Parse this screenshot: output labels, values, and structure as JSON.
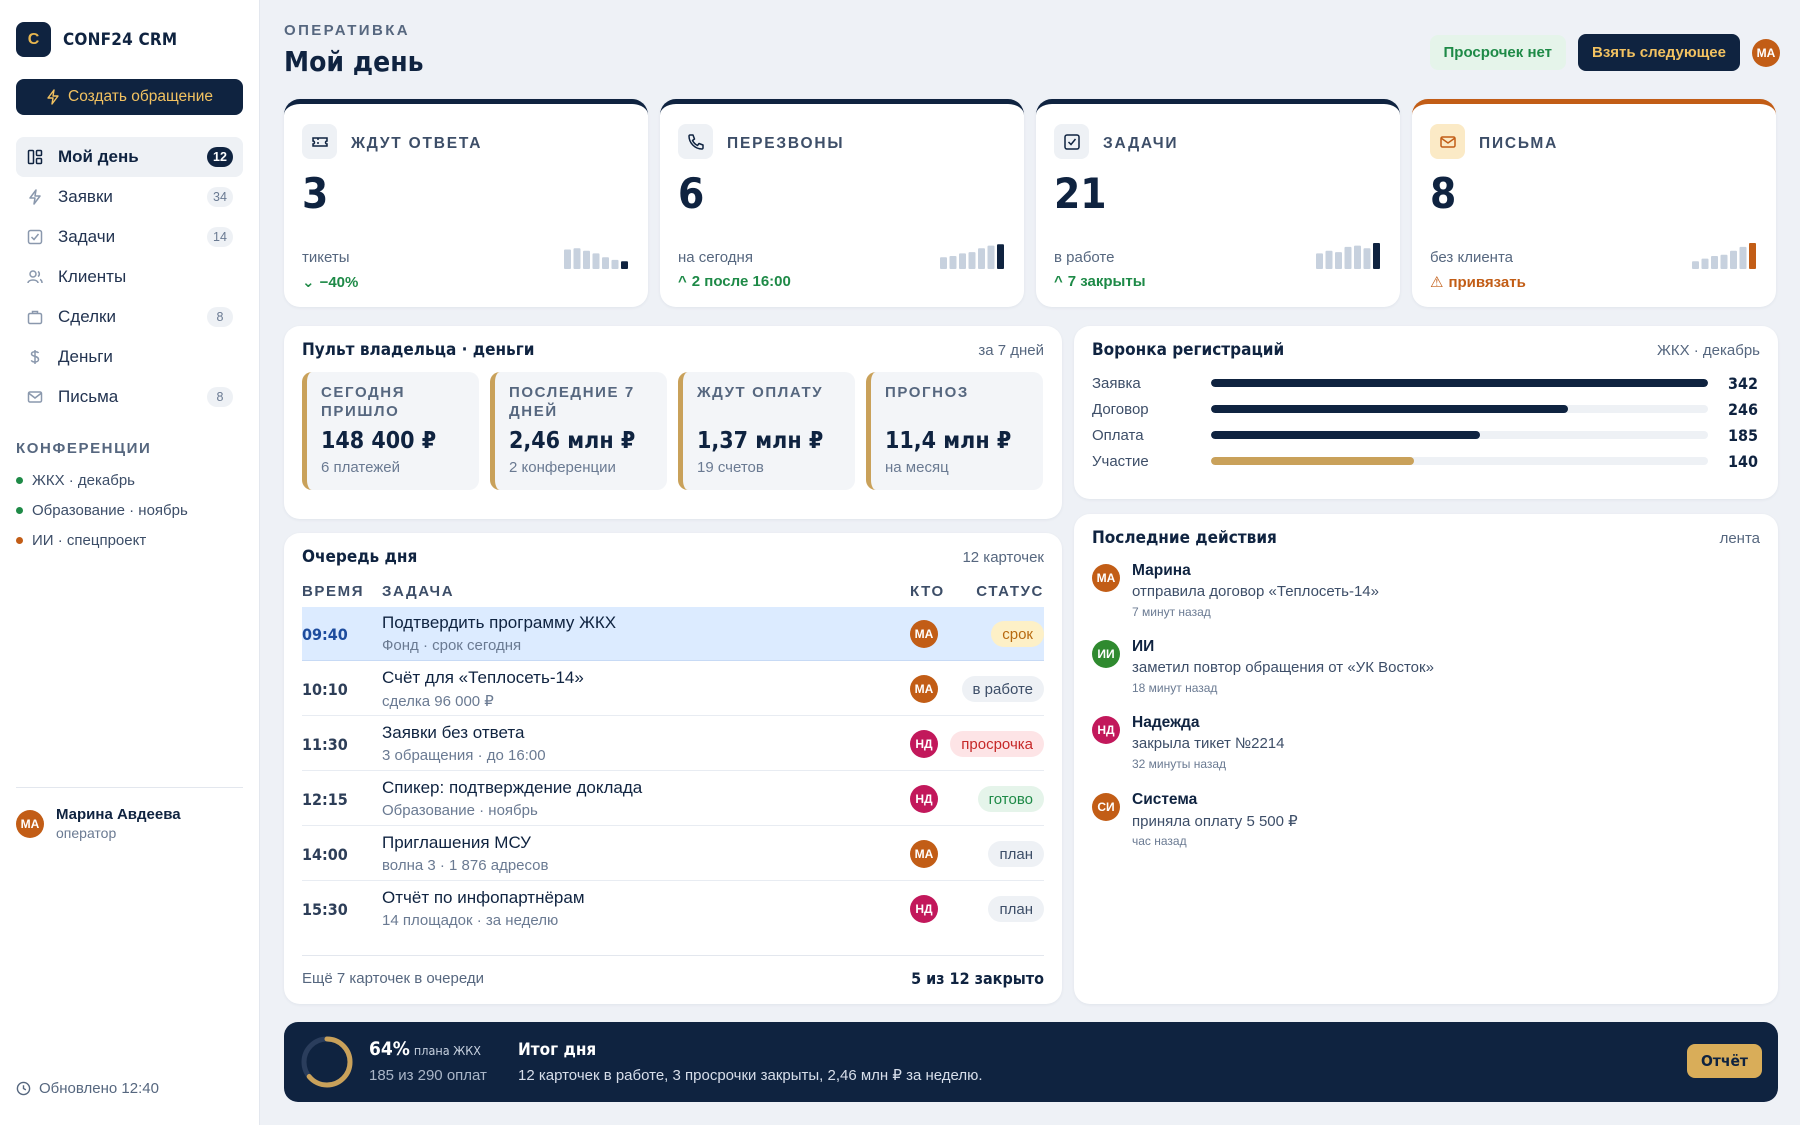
{
  "app": {
    "logo_letter": "C",
    "name": "CONF24 CRM"
  },
  "sidebar": {
    "create_label": "Создать обращение",
    "nav": [
      {
        "label": "Мой день",
        "count": "12",
        "icon": "dashboard-icon"
      },
      {
        "label": "Заявки",
        "count": "34",
        "icon": "bolt-icon"
      },
      {
        "label": "Задачи",
        "count": "14",
        "icon": "checkbox-icon"
      },
      {
        "label": "Клиенты",
        "count": "",
        "icon": "users-icon"
      },
      {
        "label": "Сделки",
        "count": "8",
        "icon": "briefcase-icon"
      },
      {
        "label": "Деньги",
        "count": "",
        "icon": "dollar-icon"
      },
      {
        "label": "Письма",
        "count": "8",
        "icon": "mail-icon"
      }
    ],
    "conferences_title": "КОНФЕРЕНЦИИ",
    "conferences": [
      {
        "label": "ЖКХ · декабрь",
        "color": "#1e8a47"
      },
      {
        "label": "Образование · ноябрь",
        "color": "#1e8a47"
      },
      {
        "label": "ИИ · спецпроект",
        "color": "#c25d16"
      }
    ],
    "user": {
      "initials": "МА",
      "name": "Марина Авдеева",
      "role": "оператор"
    },
    "updated": "Обновлено 12:40"
  },
  "header": {
    "eyebrow": "ОПЕРАТИВКА",
    "title": "Мой день",
    "status_badge": "Просрочек нет",
    "next_button": "Взять следующее",
    "avatar": "МА"
  },
  "kpis": [
    {
      "label": "ЖДУТ ОТВЕТА",
      "value": "3",
      "sub": "тикеты",
      "trend": "−40%",
      "trend_dir": "down",
      "icon": "ticket-icon",
      "spark": [
        0.75,
        0.8,
        0.7,
        0.6,
        0.45,
        0.35,
        0.3
      ]
    },
    {
      "label": "ПЕРЕЗВОНЫ",
      "value": "6",
      "sub": "на сегодня",
      "trend": "2 после 16:00",
      "trend_dir": "up",
      "icon": "phone-icon",
      "spark": [
        0.45,
        0.5,
        0.6,
        0.65,
        0.8,
        0.9,
        0.95
      ]
    },
    {
      "label": "ЗАДАЧИ",
      "value": "21",
      "sub": "в работе",
      "trend": "7 закрыты",
      "trend_dir": "up",
      "icon": "checkbox-icon",
      "spark": [
        0.6,
        0.7,
        0.65,
        0.85,
        0.9,
        0.8,
        1.0
      ]
    },
    {
      "label": "ПИСЬМА",
      "value": "8",
      "sub": "без клиента",
      "trend": "привязать",
      "trend_dir": "warn",
      "icon": "mail-icon",
      "spark": [
        0.3,
        0.4,
        0.5,
        0.55,
        0.7,
        0.85,
        1.0
      ]
    }
  ],
  "money": {
    "title": "Пульт владельца · деньги",
    "meta": "за 7 дней",
    "boxes": [
      {
        "label": "СЕГОДНЯ ПРИШЛО",
        "value": "148 400 ₽",
        "sub": "6 платежей"
      },
      {
        "label": "ПОСЛЕДНИЕ 7 ДНЕЙ",
        "value": "2,46 млн ₽",
        "sub": "2 конференции"
      },
      {
        "label": "ЖДУТ ОПЛАТУ",
        "value": "1,37 млн ₽",
        "sub": "19 счетов"
      },
      {
        "label": "ПРОГНОЗ",
        "value": "11,4 млн ₽",
        "sub": "на месяц"
      }
    ]
  },
  "funnel": {
    "title": "Воронка регистраций",
    "meta": "ЖКХ · декабрь",
    "max": 342,
    "rows": [
      {
        "label": "Заявка",
        "value": 342,
        "color": "#0f2340"
      },
      {
        "label": "Договор",
        "value": 246,
        "color": "#0f2340"
      },
      {
        "label": "Оплата",
        "value": 185,
        "color": "#0f2340"
      },
      {
        "label": "Участие",
        "value": 140,
        "color": "#c9a15a"
      }
    ]
  },
  "queue": {
    "title": "Очередь дня",
    "meta": "12 карточек",
    "columns": {
      "time": "ВРЕМЯ",
      "task": "ЗАДАЧА",
      "who": "КТО",
      "status": "СТАТУС"
    },
    "rows": [
      {
        "time": "09:40",
        "title": "Подтвердить программу ЖКХ",
        "sub": "Фонд · срок сегодня",
        "who": "МА",
        "status": "срок",
        "status_kind": "due",
        "highlight": true
      },
      {
        "time": "10:10",
        "title": "Счёт для «Теплосеть-14»",
        "sub": "сделка 96 000 ₽",
        "who": "МА",
        "status": "в работе",
        "status_kind": "work"
      },
      {
        "time": "11:30",
        "title": "Заявки без ответа",
        "sub": "3 обращения · до 16:00",
        "who": "НД",
        "status": "просрочка",
        "status_kind": "late"
      },
      {
        "time": "12:15",
        "title": "Спикер: подтверждение доклада",
        "sub": "Образование · ноябрь",
        "who": "НД",
        "status": "готово",
        "status_kind": "done"
      },
      {
        "time": "14:00",
        "title": "Приглашения МСУ",
        "sub": "волна 3 · 1 876 адресов",
        "who": "МА",
        "status": "план",
        "status_kind": "plan"
      },
      {
        "time": "15:30",
        "title": "Отчёт по инфопартнёрам",
        "sub": "14 площадок · за неделю",
        "who": "НД",
        "status": "план",
        "status_kind": "plan"
      }
    ],
    "footer_left": "Ещё 7 карточек в очереди",
    "footer_right": "5 из 12 закрыто"
  },
  "activity": {
    "title": "Последние действия",
    "meta": "лента",
    "items": [
      {
        "initials": "МА",
        "name": "Марина",
        "text": "отправила договор «Теплосеть-14»",
        "time": "7 минут назад",
        "color": "#c25d16"
      },
      {
        "initials": "ИИ",
        "name": "ИИ",
        "text": "заметил повтор обращения от «УК Восток»",
        "time": "18 минут назад",
        "color": "#2f8a2f"
      },
      {
        "initials": "НД",
        "name": "Надежда",
        "text": "закрыла тикет №2214",
        "time": "32 минуты назад",
        "color": "#c2185b"
      },
      {
        "initials": "СИ",
        "name": "Система",
        "text": "приняла оплату 5 500 ₽",
        "time": "час назад",
        "color": "#c25d16"
      }
    ]
  },
  "summary": {
    "percent": "64%",
    "percent_fraction": 0.64,
    "percent_label": "плана ЖКХ",
    "sub": "185 из 290 оплат",
    "title": "Итог дня",
    "text": "12 карточек в работе, 3 просрочки закрыты, 2,46 млн ₽ за неделю.",
    "button": "Отчёт"
  },
  "colors": {
    "navy": "#0f2340",
    "gold": "#c9a15a",
    "orange": "#c25d16",
    "green": "#1e8a47"
  }
}
